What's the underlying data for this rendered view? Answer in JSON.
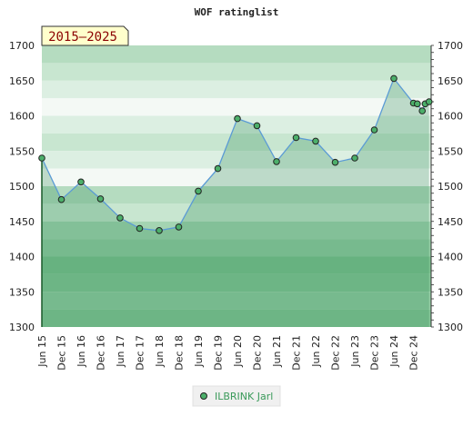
{
  "chart_data": {
    "type": "area",
    "title": "WOF ratinglist",
    "period_label": "2015–2025",
    "ylim": [
      1300,
      1700
    ],
    "yticks": [
      1300,
      1350,
      1400,
      1450,
      1500,
      1550,
      1600,
      1650,
      1700
    ],
    "xticks": [
      "Jun 15",
      "Dec 15",
      "Jun 16",
      "Dec 16",
      "Jun 17",
      "Dec 17",
      "Jun 18",
      "Dec 18",
      "Jun 19",
      "Dec 19",
      "Jun 20",
      "Dec 20",
      "Jun 21",
      "Dec 21",
      "Jun 22",
      "Dec 22",
      "Jun 23",
      "Dec 23",
      "Jun 24",
      "Dec 24"
    ],
    "grid": "horizontal bands",
    "legend_position": "bottom",
    "series": [
      {
        "name": "ILBRINK Jarl",
        "color": "#5b9bd5",
        "marker_color": "#4caf6a",
        "points": [
          {
            "x": 0.0,
            "y": 1540
          },
          {
            "x": 1.0,
            "y": 1481
          },
          {
            "x": 2.0,
            "y": 1506
          },
          {
            "x": 3.0,
            "y": 1482
          },
          {
            "x": 4.0,
            "y": 1455
          },
          {
            "x": 5.0,
            "y": 1440
          },
          {
            "x": 6.0,
            "y": 1437
          },
          {
            "x": 7.0,
            "y": 1442
          },
          {
            "x": 8.0,
            "y": 1493
          },
          {
            "x": 9.0,
            "y": 1525
          },
          {
            "x": 10.0,
            "y": 1596
          },
          {
            "x": 11.0,
            "y": 1586
          },
          {
            "x": 12.0,
            "y": 1535
          },
          {
            "x": 13.0,
            "y": 1569
          },
          {
            "x": 14.0,
            "y": 1564
          },
          {
            "x": 15.0,
            "y": 1534
          },
          {
            "x": 16.0,
            "y": 1540
          },
          {
            "x": 17.0,
            "y": 1580
          },
          {
            "x": 18.0,
            "y": 1653
          },
          {
            "x": 19.0,
            "y": 1618
          },
          {
            "x": 19.2,
            "y": 1617
          },
          {
            "x": 19.45,
            "y": 1607
          },
          {
            "x": 19.6,
            "y": 1617
          },
          {
            "x": 19.8,
            "y": 1620
          }
        ]
      }
    ]
  },
  "colors": {
    "band_light": "#f4f9f5",
    "band_mid": "#c8e6d0",
    "band_dark": "#7fc496",
    "area_fill": "#7fbf8e",
    "label_box_bg": "#ffffcc"
  }
}
